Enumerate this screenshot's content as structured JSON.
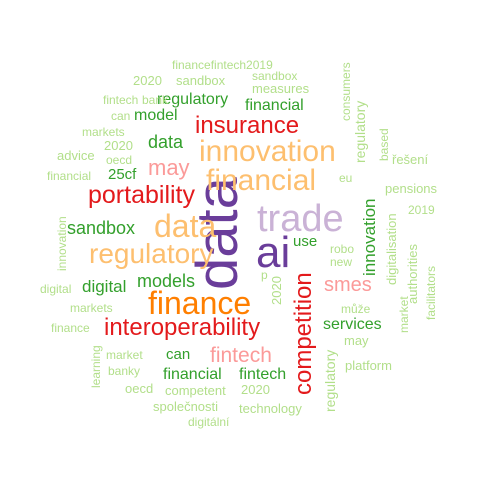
{
  "palette": {
    "purple_dark": "#6a3d9a",
    "purple_light": "#cab2d6",
    "orange": "#ff7f00",
    "orange_light": "#fdbf6f",
    "red": "#e31a1c",
    "pink": "#fb9a99",
    "green_dark": "#33a02c",
    "green_light": "#b2df8a"
  },
  "words": [
    {
      "id": "data-large",
      "text": "data",
      "color": "purple_dark"
    },
    {
      "id": "ai",
      "text": "ai",
      "color": "purple_dark"
    },
    {
      "id": "trade",
      "text": "trade",
      "color": "purple_light"
    },
    {
      "id": "finance",
      "text": "finance",
      "color": "orange"
    },
    {
      "id": "innovation-orange",
      "text": "innovation",
      "color": "orange_light"
    },
    {
      "id": "financial-orange",
      "text": "financial",
      "color": "orange_light"
    },
    {
      "id": "data-orange",
      "text": "data",
      "color": "orange_light"
    },
    {
      "id": "regulatory-orange",
      "text": "regulatory",
      "color": "orange_light"
    },
    {
      "id": "insurance",
      "text": "insurance",
      "color": "red"
    },
    {
      "id": "portability",
      "text": "portability",
      "color": "red"
    },
    {
      "id": "interoperability",
      "text": "interoperability",
      "color": "red"
    },
    {
      "id": "competition",
      "text": "competition",
      "color": "red"
    },
    {
      "id": "may-pink",
      "text": "may",
      "color": "pink"
    },
    {
      "id": "smes",
      "text": "smes",
      "color": "pink"
    },
    {
      "id": "fintech-pink",
      "text": "fintech",
      "color": "pink"
    },
    {
      "id": "regulatory-green",
      "text": "regulatory",
      "color": "green_dark"
    },
    {
      "id": "financial-green-1",
      "text": "financial",
      "color": "green_dark"
    },
    {
      "id": "model",
      "text": "model",
      "color": "green_dark"
    },
    {
      "id": "data-green",
      "text": "data",
      "color": "green_dark"
    },
    {
      "id": "25cf",
      "text": "25cf",
      "color": "green_dark"
    },
    {
      "id": "sandbox-green",
      "text": "sandbox",
      "color": "green_dark"
    },
    {
      "id": "models",
      "text": "models",
      "color": "green_dark"
    },
    {
      "id": "digital-green",
      "text": "digital",
      "color": "green_dark"
    },
    {
      "id": "use",
      "text": "use",
      "color": "green_dark"
    },
    {
      "id": "innovation-green",
      "text": "innovation",
      "color": "green_dark"
    },
    {
      "id": "services",
      "text": "services",
      "color": "green_dark"
    },
    {
      "id": "can-green",
      "text": "can",
      "color": "green_dark"
    },
    {
      "id": "financial-green-2",
      "text": "financial",
      "color": "green_dark"
    },
    {
      "id": "fintech-green",
      "text": "fintech",
      "color": "green_dark"
    },
    {
      "id": "financefintech2019",
      "text": "financefintech2019",
      "color": "green_light"
    },
    {
      "id": "2020-1",
      "text": "2020",
      "color": "green_light"
    },
    {
      "id": "sandbox-light-1",
      "text": "sandbox",
      "color": "green_light"
    },
    {
      "id": "sandbox-light-2",
      "text": "sandbox",
      "color": "green_light"
    },
    {
      "id": "measures",
      "text": "measures",
      "color": "green_light"
    },
    {
      "id": "consumers",
      "text": "consumers",
      "color": "green_light"
    },
    {
      "id": "fintech-light-1",
      "text": "fintech",
      "color": "green_light"
    },
    {
      "id": "bank",
      "text": "bank",
      "color": "green_light"
    },
    {
      "id": "can-light-1",
      "text": "can",
      "color": "green_light"
    },
    {
      "id": "markets-1",
      "text": "markets",
      "color": "green_light"
    },
    {
      "id": "regulatory-light",
      "text": "regulatory",
      "color": "green_light"
    },
    {
      "id": "based",
      "text": "based",
      "color": "green_light"
    },
    {
      "id": "advice",
      "text": "advice",
      "color": "green_light"
    },
    {
      "id": "2020-2",
      "text": "2020",
      "color": "green_light"
    },
    {
      "id": "oecd-1",
      "text": "oecd",
      "color": "green_light"
    },
    {
      "id": "reseni",
      "text": "řešení",
      "color": "green_light"
    },
    {
      "id": "financial-light",
      "text": "financial",
      "color": "green_light"
    },
    {
      "id": "eu",
      "text": "eu",
      "color": "green_light"
    },
    {
      "id": "pensions",
      "text": "pensions",
      "color": "green_light"
    },
    {
      "id": "innovation-light",
      "text": "innovation",
      "color": "green_light"
    },
    {
      "id": "digitalisation",
      "text": "digitalisation",
      "color": "green_light"
    },
    {
      "id": "2019",
      "text": "2019",
      "color": "green_light"
    },
    {
      "id": "robo",
      "text": "robo",
      "color": "green_light"
    },
    {
      "id": "new",
      "text": "new",
      "color": "green_light"
    },
    {
      "id": "authorities",
      "text": "authorities",
      "color": "green_light"
    },
    {
      "id": "facilitators",
      "text": "facilitators",
      "color": "green_light"
    },
    {
      "id": "p",
      "text": "p",
      "color": "green_light"
    },
    {
      "id": "2020-3",
      "text": "2020",
      "color": "green_light"
    },
    {
      "id": "digital-light",
      "text": "digital",
      "color": "green_light"
    },
    {
      "id": "markets-2",
      "text": "markets",
      "color": "green_light"
    },
    {
      "id": "finance-light",
      "text": "finance",
      "color": "green_light"
    },
    {
      "id": "muze",
      "text": "může",
      "color": "green_light"
    },
    {
      "id": "market-1",
      "text": "market",
      "color": "green_light"
    },
    {
      "id": "market-2",
      "text": "market",
      "color": "green_light"
    },
    {
      "id": "may-light",
      "text": "may",
      "color": "green_light"
    },
    {
      "id": "learning",
      "text": "learning",
      "color": "green_light"
    },
    {
      "id": "banky",
      "text": "banky",
      "color": "green_light"
    },
    {
      "id": "platform",
      "text": "platform",
      "color": "green_light"
    },
    {
      "id": "oecd-2",
      "text": "oecd",
      "color": "green_light"
    },
    {
      "id": "competent",
      "text": "competent",
      "color": "green_light"
    },
    {
      "id": "2020-4",
      "text": "2020",
      "color": "green_light"
    },
    {
      "id": "regulatory-vertical",
      "text": "regulatory",
      "color": "green_light"
    },
    {
      "id": "spolecnosti",
      "text": "společnosti",
      "color": "green_light"
    },
    {
      "id": "technology",
      "text": "technology",
      "color": "green_light"
    },
    {
      "id": "digitalni",
      "text": "digitální",
      "color": "green_light"
    }
  ]
}
